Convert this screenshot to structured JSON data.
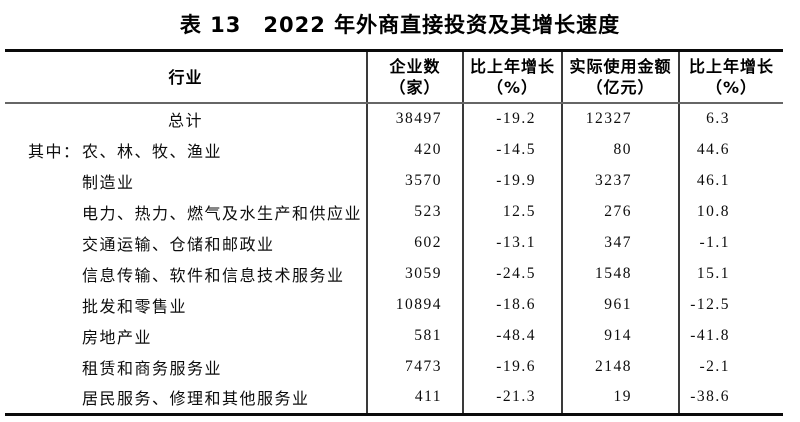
{
  "title": "表 13　2022 年外商直接投资及其增长速度",
  "table": {
    "col_headers": {
      "industry": "行业",
      "enterprises_line1": "企业数",
      "enterprises_line2": "（家）",
      "growth1_line1": "比上年增长",
      "growth1_line2": "（%）",
      "amount_line1": "实际使用金额",
      "amount_line2": "（亿元）",
      "growth2_line1": "比上年增长",
      "growth2_line2": "（%）"
    },
    "rows": [
      {
        "prefix": "",
        "label": "总计",
        "values": [
          "38497",
          "-19.2",
          "12327",
          "6.3"
        ]
      },
      {
        "prefix": "其中：",
        "label": "农、林、牧、渔业",
        "values": [
          "420",
          "-14.5",
          "80",
          "44.6"
        ]
      },
      {
        "prefix": "",
        "label": "制造业",
        "values": [
          "3570",
          "-19.9",
          "3237",
          "46.1"
        ]
      },
      {
        "prefix": "",
        "label": "电力、热力、燃气及水生产和供应业",
        "values": [
          "523",
          "12.5",
          "276",
          "10.8"
        ]
      },
      {
        "prefix": "",
        "label": "交通运输、仓储和邮政业",
        "values": [
          "602",
          "-13.1",
          "347",
          "-1.1"
        ]
      },
      {
        "prefix": "",
        "label": "信息传输、软件和信息技术服务业",
        "values": [
          "3059",
          "-24.5",
          "1548",
          "15.1"
        ]
      },
      {
        "prefix": "",
        "label": "批发和零售业",
        "values": [
          "10894",
          "-18.6",
          "961",
          "-12.5"
        ]
      },
      {
        "prefix": "",
        "label": "房地产业",
        "values": [
          "581",
          "-48.4",
          "914",
          "-41.8"
        ]
      },
      {
        "prefix": "",
        "label": "租赁和商务服务业",
        "values": [
          "7473",
          "-19.6",
          "2148",
          "-2.1"
        ]
      },
      {
        "prefix": "",
        "label": "居民服务、修理和其他服务业",
        "values": [
          "411",
          "-21.3",
          "19",
          "-38.6"
        ]
      }
    ]
  },
  "chart_data": {
    "type": "table",
    "title": "表13 2022年外商直接投资及其增长速度",
    "columns": [
      "行业",
      "企业数（家）",
      "比上年增长（%）",
      "实际使用金额（亿元）",
      "比上年增长（%）"
    ],
    "rows": [
      [
        "总计",
        38497,
        -19.2,
        12327,
        6.3
      ],
      [
        "其中：农、林、牧、渔业",
        420,
        -14.5,
        80,
        44.6
      ],
      [
        "制造业",
        3570,
        -19.9,
        3237,
        46.1
      ],
      [
        "电力、热力、燃气及水生产和供应业",
        523,
        12.5,
        276,
        10.8
      ],
      [
        "交通运输、仓储和邮政业",
        602,
        -13.1,
        347,
        -1.1
      ],
      [
        "信息传输、软件和信息技术服务业",
        3059,
        -24.5,
        1548,
        15.1
      ],
      [
        "批发和零售业",
        10894,
        -18.6,
        961,
        -12.5
      ],
      [
        "房地产业",
        581,
        -48.4,
        914,
        -41.8
      ],
      [
        "租赁和商务服务业",
        7473,
        -19.6,
        2148,
        -2.1
      ],
      [
        "居民服务、修理和其他服务业",
        411,
        -21.3,
        19,
        -38.6
      ]
    ]
  },
  "colors": {
    "background": "#ffffff",
    "text": "#111111",
    "border_heavy": "#0a0a0a",
    "border_light": "#666666"
  }
}
